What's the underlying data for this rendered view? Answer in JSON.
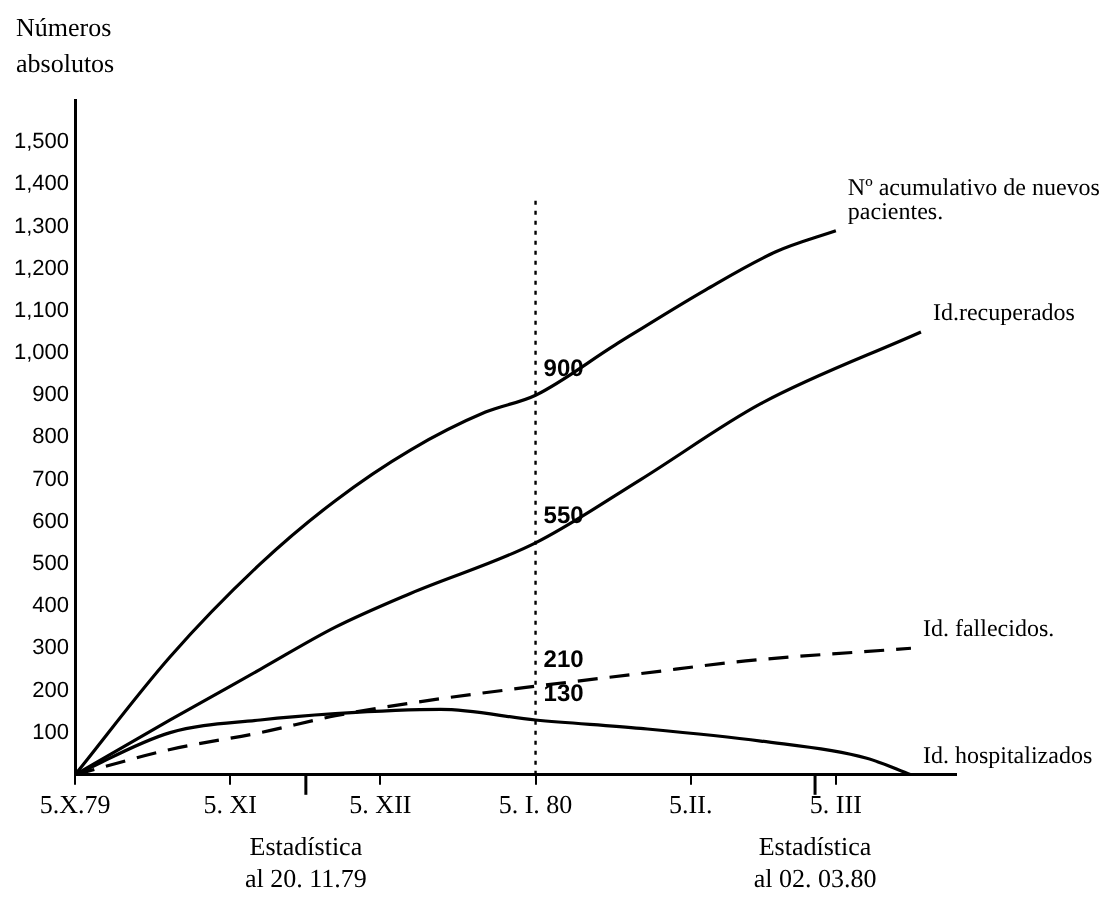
{
  "chart_data": {
    "type": "line",
    "ylabel": "Números absolutos",
    "xlim": [
      "1979-10-05",
      "1980-03-29"
    ],
    "ylim": [
      0,
      1600
    ],
    "xticks": [
      {
        "value": "1979-10-05",
        "label": "5.X.79"
      },
      {
        "value": "1979-11-05",
        "label": "5. XI"
      },
      {
        "value": "1979-12-05",
        "label": "5. XII"
      },
      {
        "value": "1980-01-05",
        "label": "5. I. 80"
      },
      {
        "value": "1980-02-05",
        "label": "5.II."
      },
      {
        "value": "1980-03-05",
        "label": "5. III"
      }
    ],
    "yticks": [
      {
        "value": 100,
        "label": "100"
      },
      {
        "value": 200,
        "label": "200"
      },
      {
        "value": 300,
        "label": "300"
      },
      {
        "value": 400,
        "label": "400"
      },
      {
        "value": 500,
        "label": "500"
      },
      {
        "value": 600,
        "label": "600"
      },
      {
        "value": 700,
        "label": "700"
      },
      {
        "value": 800,
        "label": "800"
      },
      {
        "value": 900,
        "label": "900"
      },
      {
        "value": 1000,
        "label": "1,000"
      },
      {
        "value": 1100,
        "label": "1,100"
      },
      {
        "value": 1200,
        "label": "1,200"
      },
      {
        "value": 1300,
        "label": "1,300"
      },
      {
        "value": 1400,
        "label": "1,400"
      },
      {
        "value": 1500,
        "label": "1,500"
      }
    ],
    "legend": false,
    "marker": "none",
    "line_style": "solid",
    "series": [
      {
        "name": "Nº acumulativo de nuevos pacientes.",
        "color": "#000000",
        "x": [
          "1979-10-05",
          "1979-10-24",
          "1979-11-11",
          "1979-11-26",
          "1979-12-11",
          "1979-12-26",
          "1980-01-05",
          "1980-01-21",
          "1980-02-08",
          "1980-02-22",
          "1980-03-05"
        ],
        "values": [
          0,
          280,
          500,
          650,
          770,
          860,
          900,
          1020,
          1150,
          1240,
          1290
        ]
      },
      {
        "name": "Id.recuperados",
        "color": "#000000",
        "x": [
          "1979-10-05",
          "1979-10-24",
          "1979-11-11",
          "1979-11-26",
          "1979-12-11",
          "1980-01-05",
          "1980-01-26",
          "1980-02-19",
          "1980-03-22"
        ],
        "values": [
          0,
          130,
          250,
          350,
          430,
          550,
          700,
          880,
          1050
        ]
      },
      {
        "name": "Id. fallecidos.",
        "color": "#000000",
        "line_style": "dashed",
        "x": [
          "1979-10-05",
          "1979-10-24",
          "1979-11-11",
          "1979-11-26",
          "1979-12-11",
          "1980-01-05",
          "1980-01-26",
          "1980-02-16",
          "1980-03-20"
        ],
        "values": [
          0,
          60,
          100,
          140,
          170,
          210,
          240,
          270,
          300
        ]
      },
      {
        "name": "Id. hospitalizados",
        "color": "#000000",
        "x": [
          "1979-10-05",
          "1979-10-24",
          "1979-11-11",
          "1979-11-26",
          "1979-12-17",
          "1980-01-05",
          "1980-01-26",
          "1980-02-19",
          "1980-03-11",
          "1980-03-20"
        ],
        "values": [
          0,
          100,
          130,
          145,
          155,
          130,
          110,
          80,
          40,
          0
        ]
      }
    ],
    "ref_lines": [
      {
        "axis": "x",
        "value": "1980-01-05",
        "color": "#000000",
        "line_style": "dotted"
      }
    ],
    "annotations": [
      {
        "text": "900",
        "x": "1980-01-05",
        "y": 900
      },
      {
        "text": "550",
        "x": "1980-01-05",
        "y": 550
      },
      {
        "text": "210",
        "x": "1980-01-05",
        "y": 210
      },
      {
        "text": "130",
        "x": "1980-01-05",
        "y": 130
      },
      "Estadística al 20. 11.79",
      "Estadística al 02. 03.80"
    ]
  }
}
